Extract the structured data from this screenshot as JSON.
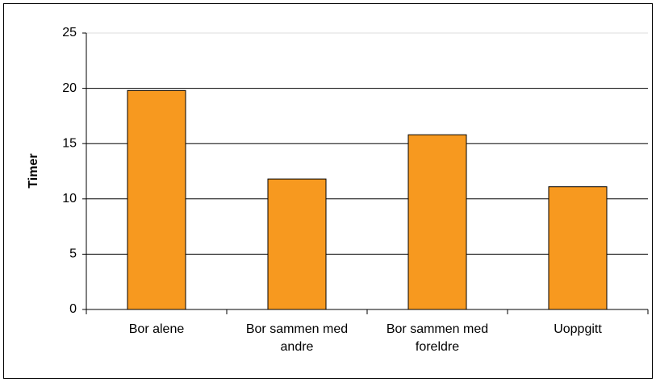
{
  "chart_data": {
    "type": "bar",
    "y_label": "Timer",
    "categories": [
      "Bor alene",
      "Bor sammen med andre",
      "Bor sammen med foreldre",
      "Uoppgitt"
    ],
    "values": [
      19.8,
      11.8,
      15.8,
      11.1
    ],
    "color": "#f7991f",
    "ylim": [
      0,
      25
    ],
    "yticks": [
      0,
      5,
      10,
      15,
      20,
      25
    ],
    "grid": true
  }
}
